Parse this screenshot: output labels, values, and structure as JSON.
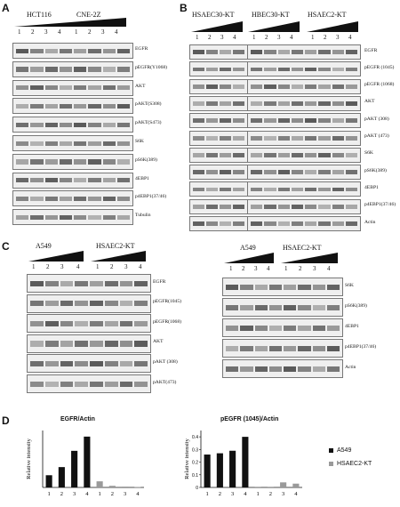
{
  "panels": {
    "A": {
      "letter": "A",
      "cell_lines": [
        "HCT116",
        "CNE-2Z"
      ],
      "lanes": [
        "1",
        "2",
        "3",
        "4",
        "1",
        "2",
        "3",
        "4"
      ],
      "blots": [
        "EGFR",
        "pEGFR(Y1068)",
        "AKT",
        "pAKT(S308)",
        "pAKT(S473)",
        "S6K",
        "pS6K(389)",
        "4EBP1",
        "p4EBP1(37/46)",
        "Tubulin"
      ]
    },
    "B": {
      "letter": "B",
      "cell_lines": [
        "HSAEC30-KT",
        "HBEC30-KT",
        "HSAEC2-KT"
      ],
      "lanes": [
        "1",
        "2",
        "3",
        "4",
        "1",
        "2",
        "3",
        "4",
        "1",
        "2",
        "3",
        "4"
      ],
      "blots": [
        "EGFR",
        "pEGFR (1045)",
        "pEGFR (1068)",
        "AKT",
        "pAKT (308)",
        "pAKT (473)",
        "S6K",
        "pS6K(389)",
        "4EBP1",
        "p4EBP1(37/46)",
        "Actin"
      ]
    },
    "C": {
      "letter": "C",
      "left": {
        "cell_lines": [
          "A549",
          "HSAEC2-KT"
        ],
        "lanes": [
          "1",
          "2",
          "3",
          "4",
          "1",
          "2",
          "3",
          "4"
        ],
        "blots": [
          "EGFR",
          "pEGFR(1045)",
          "pEGFR(1068)",
          "AKT",
          "pAKT (308)",
          "pAKT(473)"
        ]
      },
      "right": {
        "cell_lines": [
          "A549",
          "HSAEC2-KT"
        ],
        "lanes": [
          "1",
          "2",
          "3",
          "4",
          "1",
          "2",
          "3",
          "4"
        ],
        "blots": [
          "S6K",
          "pS6K(389)",
          "4EBP1",
          "p4EBP1(37/46)",
          "Actin"
        ]
      }
    },
    "D": {
      "letter": "D",
      "legend": [
        {
          "name": "A549",
          "color": "#111111"
        },
        {
          "name": "HSAEC2-KT",
          "color": "#9a9a9a"
        }
      ]
    }
  },
  "chart_data": [
    {
      "type": "bar",
      "title": "EGFR/Actin",
      "ylabel": "Relative intensity",
      "xlabel": "",
      "categories": [
        "1",
        "2",
        "3",
        "4",
        "1",
        "2",
        "3",
        "4"
      ],
      "series": [
        {
          "name": "A549",
          "values": [
            0.3,
            0.5,
            0.9,
            1.25,
            null,
            null,
            null,
            null
          ]
        },
        {
          "name": "HSAEC2-KT",
          "values": [
            null,
            null,
            null,
            null,
            0.15,
            0.04,
            0.02,
            0.01
          ]
        }
      ],
      "ylim": [
        0,
        1.4
      ],
      "yticks": [],
      "grid": false
    },
    {
      "type": "bar",
      "title": "pEGFR (1045)/Actin",
      "ylabel": "Relative intensity",
      "xlabel": "",
      "categories": [
        "1",
        "2",
        "3",
        "4",
        "1",
        "2",
        "3",
        "4"
      ],
      "series": [
        {
          "name": "A549",
          "values": [
            0.26,
            0.27,
            0.29,
            0.4,
            null,
            null,
            null,
            null
          ]
        },
        {
          "name": "HSAEC2-KT",
          "values": [
            null,
            null,
            null,
            null,
            0.005,
            0.005,
            0.04,
            0.03
          ]
        }
      ],
      "ylim": [
        0,
        0.45
      ],
      "yticks": [
        "0",
        "0.1",
        "0.2",
        "0.3",
        "0.4"
      ],
      "grid": false
    }
  ]
}
